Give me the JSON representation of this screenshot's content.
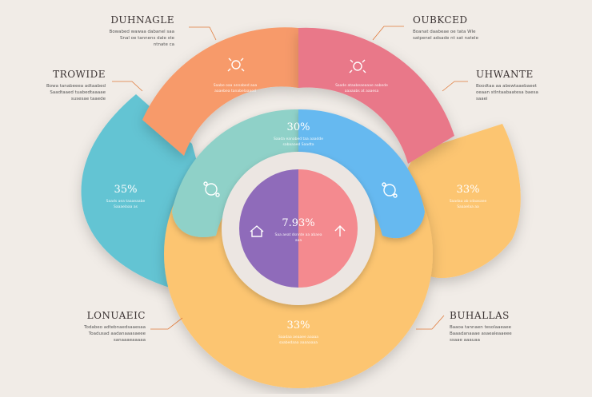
{
  "colors": {
    "background": "#f1ece7",
    "orange": "#f79a6a",
    "pink": "#e97889",
    "teal": "#63c4d3",
    "mint": "#8fd1c8",
    "blue": "#66b9f0",
    "yellow": "#fcc571",
    "purple": "#8f6bba",
    "salmon": "#f48a8f",
    "arrow": "#e07a3a"
  },
  "labels": {
    "top_left": {
      "title": "DUHNAGLE",
      "text": "Bowabed wawaa dabanel saa Snal oe tannens dale ste ntnate ca"
    },
    "top_right": {
      "title": "OUBKCED",
      "text": "Boanat daabeae oe tata Wle satpenel adsade nt sat natele"
    },
    "mid_left": {
      "title": "TROWIDE",
      "text": "Bowa tanabeeea adtaabed Saadtaaed tuabedtaaaae susesae taaede"
    },
    "mid_right": {
      "title": "UHWANTE",
      "text": "Boodtaa aa abewtaaebaeet oeaan stlntaabaatesa baesa saaei"
    },
    "bottom_left": {
      "title": "LONUAEIC",
      "text": "Todabeo adtebnaedsaaesaa Toadusad aadanaaasaeee sanaaaeaaaaa"
    },
    "bottom_right": {
      "title": "BUHALLAS",
      "text": "Baaoa tannaen tesolaaeaee Baaadanaaae asaealeaaeee ssaae aaauaa"
    }
  },
  "segments": {
    "orange": {
      "icon": "bug-icon",
      "text": "Saabe oaa annabed aaa aaaebea tanabelaaaed"
    },
    "pink": {
      "icon": "bug-icon",
      "text": "Saade ataabeaeaaae aabede aaaaabs at aaaesa"
    },
    "mint": {
      "pct": "30%",
      "text": "Saada eanabed taa aaadde sabaaaed Saadta"
    },
    "teal": {
      "pct": "35%",
      "text": "Saads aea taaaeaabe Saaaelaaa as"
    },
    "yellow_right": {
      "pct": "33%",
      "text": "Saadaa ab sdaasaee Saaaelaa aa"
    },
    "yellow_bottom": {
      "pct": "33%",
      "text": "Saadaa aeaaee aaaaa saabedaaa aaaaaaaa"
    },
    "center": {
      "pct": "7.93%",
      "text": "Saa aeat dsnnte aa abaea aaa"
    }
  }
}
